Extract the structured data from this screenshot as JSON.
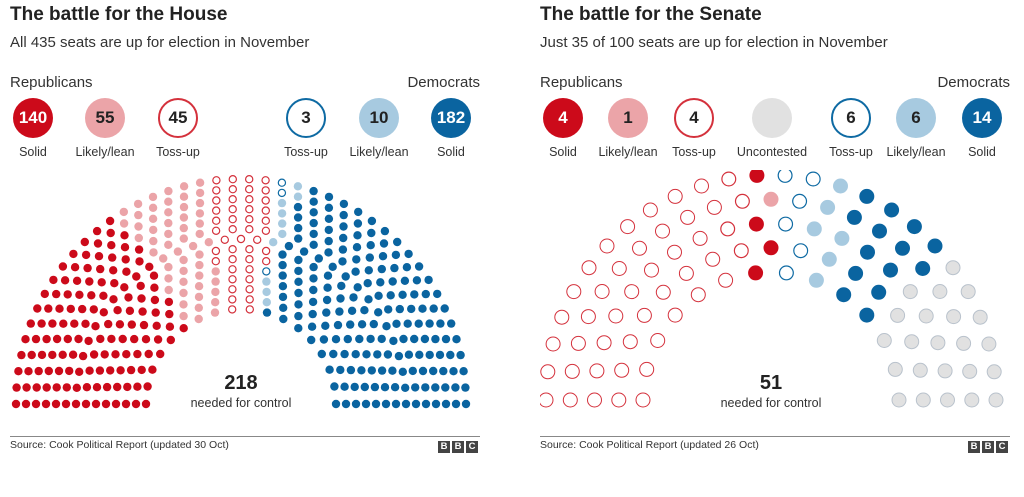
{
  "colors": {
    "rep_solid": "#cc0a1a",
    "rep_likely": "#eba4a8",
    "tossup_rep": "#d4313c",
    "tossup_dem": "#0e6aa3",
    "dem_likely": "#a7cae0",
    "dem_solid": "#0a64a0",
    "uncontested": "#e1e1e1",
    "uncontested_stroke": "#b9c2cc"
  },
  "house": {
    "title": "The battle for the House",
    "subtitle": "All 435 seats are up for election in November",
    "rep_label": "Republicans",
    "dem_label": "Democrats",
    "legend": [
      {
        "value": "140",
        "caption": "Solid",
        "style": "rep_solid"
      },
      {
        "value": "55",
        "caption": "Likely/lean",
        "style": "rep_likely"
      },
      {
        "value": "45",
        "caption": "Toss-up",
        "style": "tossup_rep"
      },
      {
        "value": "3",
        "caption": "Toss-up",
        "style": "tossup_dem"
      },
      {
        "value": "10",
        "caption": "Likely/lean",
        "style": "dem_likely"
      },
      {
        "value": "182",
        "caption": "Solid",
        "style": "dem_solid"
      }
    ],
    "needed_number": "218",
    "needed_label": "needed for control",
    "source": "Source: Cook Political Report (updated 30 Oct)"
  },
  "senate": {
    "title": "The battle for the Senate",
    "subtitle": "Just 35 of 100 seats are up for election in November",
    "rep_label": "Republicans",
    "dem_label": "Democrats",
    "legend": [
      {
        "value": "4",
        "caption": "Solid",
        "style": "rep_solid"
      },
      {
        "value": "1",
        "caption": "Likely/lean",
        "style": "rep_likely"
      },
      {
        "value": "4",
        "caption": "Toss-up",
        "style": "tossup_rep"
      },
      {
        "value": "",
        "caption": "Uncontested",
        "style": "uncontested"
      },
      {
        "value": "6",
        "caption": "Toss-up",
        "style": "tossup_dem"
      },
      {
        "value": "6",
        "caption": "Likely/lean",
        "style": "dem_likely"
      },
      {
        "value": "14",
        "caption": "Solid",
        "style": "dem_solid"
      }
    ],
    "needed_number": "51",
    "needed_label": "needed for control",
    "source": "Source: Cook Political Report (updated 26 Oct)"
  },
  "bbc_logo": [
    "B",
    "B",
    "C"
  ],
  "chart_data": [
    {
      "type": "parliament",
      "title": "The battle for the House",
      "subtitle": "All 435 seats are up for election in November",
      "total_seats": 435,
      "seats_needed": 218,
      "series": [
        {
          "name": "Republicans Solid",
          "value": 140,
          "color": "#cc0a1a",
          "style": "filled"
        },
        {
          "name": "Republicans Likely/lean",
          "value": 55,
          "color": "#eba4a8",
          "style": "filled"
        },
        {
          "name": "Republicans Toss-up",
          "value": 45,
          "color": "#d4313c",
          "style": "outline"
        },
        {
          "name": "Democrats Toss-up",
          "value": 3,
          "color": "#0e6aa3",
          "style": "outline"
        },
        {
          "name": "Democrats Likely/lean",
          "value": 10,
          "color": "#a7cae0",
          "style": "filled"
        },
        {
          "name": "Democrats Solid",
          "value": 182,
          "color": "#0a64a0",
          "style": "filled"
        }
      ]
    },
    {
      "type": "parliament",
      "title": "The battle for the Senate",
      "subtitle": "Just 35 of 100 seats are up for election in November",
      "total_seats": 100,
      "seats_needed": 51,
      "series": [
        {
          "name": "Republicans Uncontested",
          "value": 42,
          "color": "#ffffff",
          "style": "outline-red"
        },
        {
          "name": "Republicans Toss-up",
          "value": 4,
          "color": "#d4313c",
          "style": "outline"
        },
        {
          "name": "Republicans Solid",
          "value": 4,
          "color": "#cc0a1a",
          "style": "filled"
        },
        {
          "name": "Republicans Likely/lean",
          "value": 1,
          "color": "#eba4a8",
          "style": "filled"
        },
        {
          "name": "Democrats Toss-up",
          "value": 6,
          "color": "#0e6aa3",
          "style": "outline"
        },
        {
          "name": "Democrats Likely/lean",
          "value": 6,
          "color": "#a7cae0",
          "style": "filled"
        },
        {
          "name": "Democrats Solid",
          "value": 14,
          "color": "#0a64a0",
          "style": "filled"
        },
        {
          "name": "Democrats Uncontested",
          "value": 23,
          "color": "#e1e1e1",
          "style": "filled-grey"
        }
      ]
    }
  ]
}
